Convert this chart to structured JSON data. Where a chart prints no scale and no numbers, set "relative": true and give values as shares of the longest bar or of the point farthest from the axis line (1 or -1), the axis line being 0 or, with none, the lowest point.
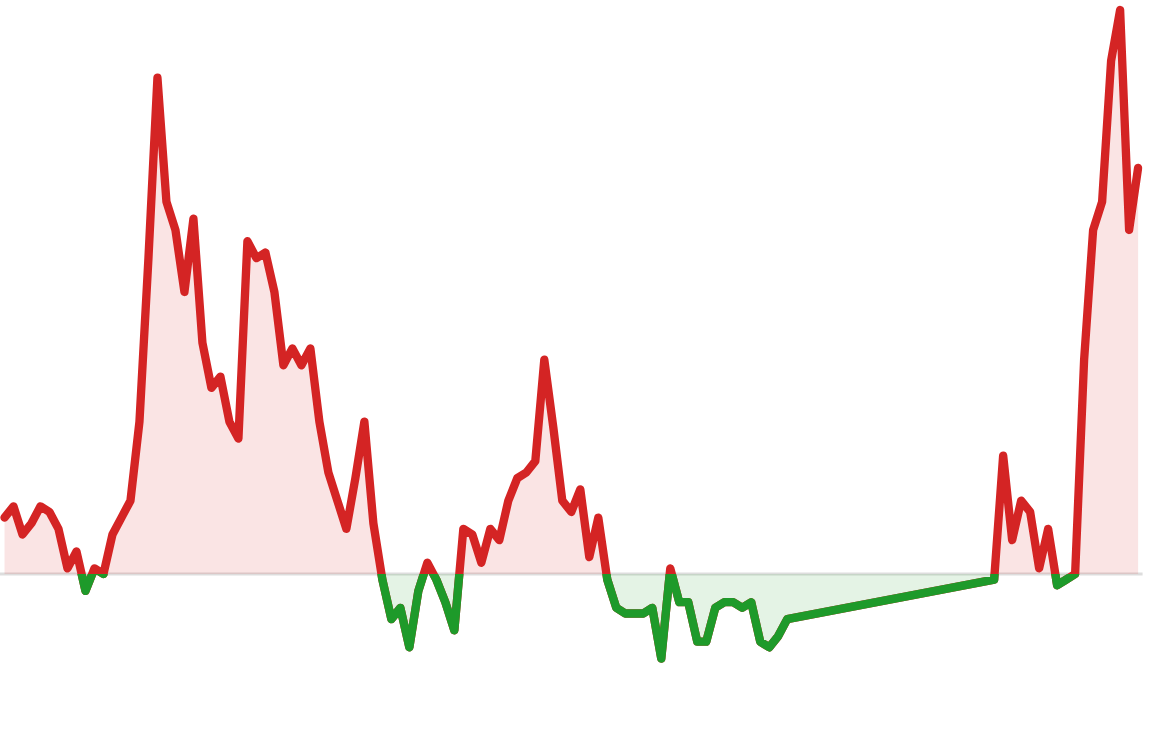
{
  "chart_data": {
    "type": "area",
    "relative": true,
    "categories": [
      null,
      null,
      null,
      null,
      null,
      null,
      null,
      null,
      null,
      null,
      null,
      null,
      null,
      null,
      null,
      null,
      null,
      null,
      null,
      null,
      null,
      null,
      null,
      null,
      null,
      null,
      null,
      null,
      null,
      null,
      null,
      null,
      null,
      null,
      null,
      null,
      null,
      null,
      null,
      null,
      null,
      null,
      null,
      null,
      null,
      null,
      null,
      null,
      null,
      null,
      null,
      null,
      null,
      null,
      null,
      null,
      null,
      null,
      null,
      null,
      null,
      null,
      null,
      null,
      null,
      null,
      null,
      null,
      null,
      null,
      null,
      null,
      null,
      null,
      null,
      null,
      null,
      null,
      null,
      null,
      null,
      null,
      null,
      null,
      null,
      null,
      null,
      null,
      null,
      null,
      null,
      null,
      null,
      null,
      null,
      null,
      null,
      null,
      null,
      null,
      null,
      null,
      null,
      null,
      null,
      null,
      null,
      null,
      null,
      null,
      null,
      null,
      null,
      null,
      null,
      null,
      null,
      null,
      null,
      null,
      null,
      null,
      null,
      null,
      null,
      null,
      null
    ],
    "series": [
      {
        "color": "#d42424",
        "values": [
          0.1,
          0.12,
          0.07,
          0.09,
          0.12,
          0.11,
          0.08,
          0.01,
          0.04,
          -0.03,
          0.01,
          0,
          0.07,
          0.1,
          0.13,
          0.27,
          0.56,
          0.88,
          0.66,
          0.61,
          0.5,
          0.63,
          0.41,
          0.33,
          0.35,
          0.27,
          0.24,
          0.59,
          0.56,
          0.57,
          0.5,
          0.37,
          0.4,
          0.37,
          0.4,
          0.27,
          0.18,
          0.13,
          0.08,
          0.17,
          0.27,
          0.09,
          -0.01,
          -0.08,
          -0.06,
          -0.13,
          -0.03,
          0.02,
          -0.01,
          -0.05,
          -0.1,
          0.08,
          0.07,
          0.02,
          0.08,
          0.06,
          0.13,
          0.17,
          0.18,
          0.2,
          0.38,
          0.26,
          0.13,
          0.11,
          0.15,
          0.03,
          0.1,
          -0.01,
          -0.06,
          -0.07,
          -0.07,
          -0.07,
          -0.06,
          -0.15,
          0.01,
          -0.05,
          -0.05,
          -0.12,
          -0.12,
          -0.06,
          -0.05,
          -0.05,
          -0.06,
          -0.05,
          -0.12,
          -0.13,
          -0.11,
          -0.08,
          null,
          null,
          null,
          null,
          null,
          null,
          null,
          null,
          null,
          null,
          null,
          null,
          null,
          null,
          null,
          null,
          null,
          null,
          null,
          null,
          null,
          null,
          -0.01,
          0.21,
          0.06,
          0.13,
          0.11,
          0.01,
          0.08,
          -0.02,
          -0.01,
          0,
          0.38,
          0.61,
          0.66,
          0.91,
          1.0,
          0.61,
          0.72
        ],
        "colors": [
          "#d42424",
          "#d42424",
          "#d42424",
          "#d42424",
          "#d42424",
          "#d42424",
          "#d42424",
          "#d42424",
          "#d42424",
          "#1e9a2a",
          "#d42424",
          "#d42424",
          "#d42424",
          "#d42424",
          "#d42424",
          "#d42424",
          "#d42424",
          "#d42424",
          "#d42424",
          "#d42424",
          "#d42424",
          "#d42424",
          "#d42424",
          "#d42424",
          "#d42424",
          "#d42424",
          "#d42424",
          "#d42424",
          "#d42424",
          "#d42424",
          "#d42424",
          "#d42424",
          "#d42424",
          "#d42424",
          "#d42424",
          "#d42424",
          "#d42424",
          "#d42424",
          "#d42424",
          "#d42424",
          "#d42424",
          "#d42424",
          "#1e9a2a",
          "#1e9a2a",
          "#1e9a2a",
          "#1e9a2a",
          "#1e9a2a",
          "#d42424",
          "#1e9a2a",
          "#1e9a2a",
          "#1e9a2a",
          "#d42424",
          "#d42424",
          "#d42424",
          "#d42424",
          "#d42424",
          "#d42424",
          "#d42424",
          "#d42424",
          "#d42424",
          "#d42424",
          "#d42424",
          "#d42424",
          "#d42424",
          "#d42424",
          "#d42424",
          "#d42424",
          "#1e9a2a",
          "#1e9a2a",
          "#1e9a2a",
          "#1e9a2a",
          "#1e9a2a",
          "#1e9a2a",
          "#1e9a2a",
          "#d42424",
          "#1e9a2a",
          "#1e9a2a",
          "#1e9a2a",
          "#1e9a2a",
          "#1e9a2a",
          "#1e9a2a",
          "#1e9a2a",
          "#1e9a2a",
          "#1e9a2a",
          "#1e9a2a",
          "#1e9a2a",
          "#1e9a2a",
          "#1e9a2a",
          "#1e9a2a",
          "#1e9a2a",
          "#1e9a2a",
          "#1e9a2a",
          "#1e9a2a",
          "#1e9a2a",
          "#1e9a2a",
          "#1e9a2a",
          "#1e9a2a",
          "#1e9a2a",
          "#1e9a2a",
          "#1e9a2a",
          "#1e9a2a",
          "#1e9a2a",
          "#1e9a2a",
          "#1e9a2a",
          "#1e9a2a",
          "#1e9a2a",
          "#1e9a2a",
          "#1e9a2a",
          "#1e9a2a",
          "#1e9a2a",
          "#1e9a2a",
          "#d42424",
          "#d42424",
          "#d42424",
          "#d42424",
          "#d42424",
          "#d42424",
          "#1e9a2a",
          "#1e9a2a",
          "#d42424",
          "#d42424",
          "#d42424",
          "#d42424",
          "#d42424",
          "#d42424",
          "#d42424",
          "#d42424"
        ]
      }
    ]
  }
}
